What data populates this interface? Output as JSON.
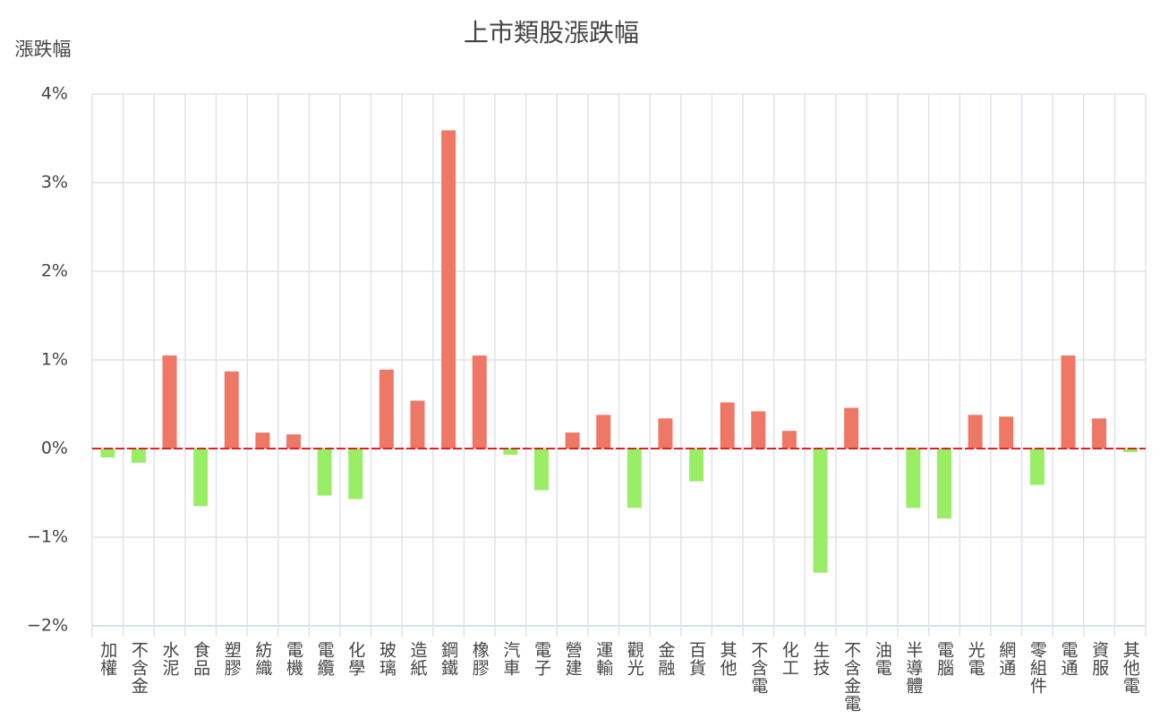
{
  "chart_data": {
    "type": "bar",
    "title": "上市類股漲跌幅",
    "y_label": "漲跌幅",
    "categories": [
      "加權",
      "不含金",
      "水泥",
      "食品",
      "塑膠",
      "紡織",
      "電機",
      "電纜",
      "化學",
      "玻璃",
      "造紙",
      "鋼鐵",
      "橡膠",
      "汽車",
      "電子",
      "營建",
      "運輸",
      "觀光",
      "金融",
      "百貨",
      "其他",
      "不含電",
      "化工",
      "生技",
      "不含金電",
      "油電",
      "半導體",
      "電腦",
      "光電",
      "網通",
      "零組件",
      "電通",
      "資服",
      "其他電"
    ],
    "values": [
      -0.1,
      -0.16,
      1.05,
      -0.65,
      0.87,
      0.18,
      0.16,
      -0.53,
      -0.57,
      0.89,
      0.54,
      3.59,
      1.05,
      -0.07,
      -0.47,
      0.18,
      0.38,
      -0.67,
      0.34,
      -0.37,
      0.52,
      0.42,
      0.2,
      -1.4,
      0.46,
      0,
      -0.67,
      -0.79,
      0.38,
      0.36,
      -0.41,
      1.05,
      0.34,
      -0.04
    ],
    "positive_color": "#ee7766",
    "negative_color": "#99ee66",
    "zero_line_color": "#dd2222",
    "ylim": [
      -2,
      4
    ],
    "yticks": [
      {
        "value": -2,
        "label": "−2%"
      },
      {
        "value": -1,
        "label": "−1%"
      },
      {
        "value": 0,
        "label": "0%"
      },
      {
        "value": 1,
        "label": "1%"
      },
      {
        "value": 2,
        "label": "2%"
      },
      {
        "value": 3,
        "label": "3%"
      },
      {
        "value": 4,
        "label": "4%"
      }
    ],
    "grid": true
  }
}
